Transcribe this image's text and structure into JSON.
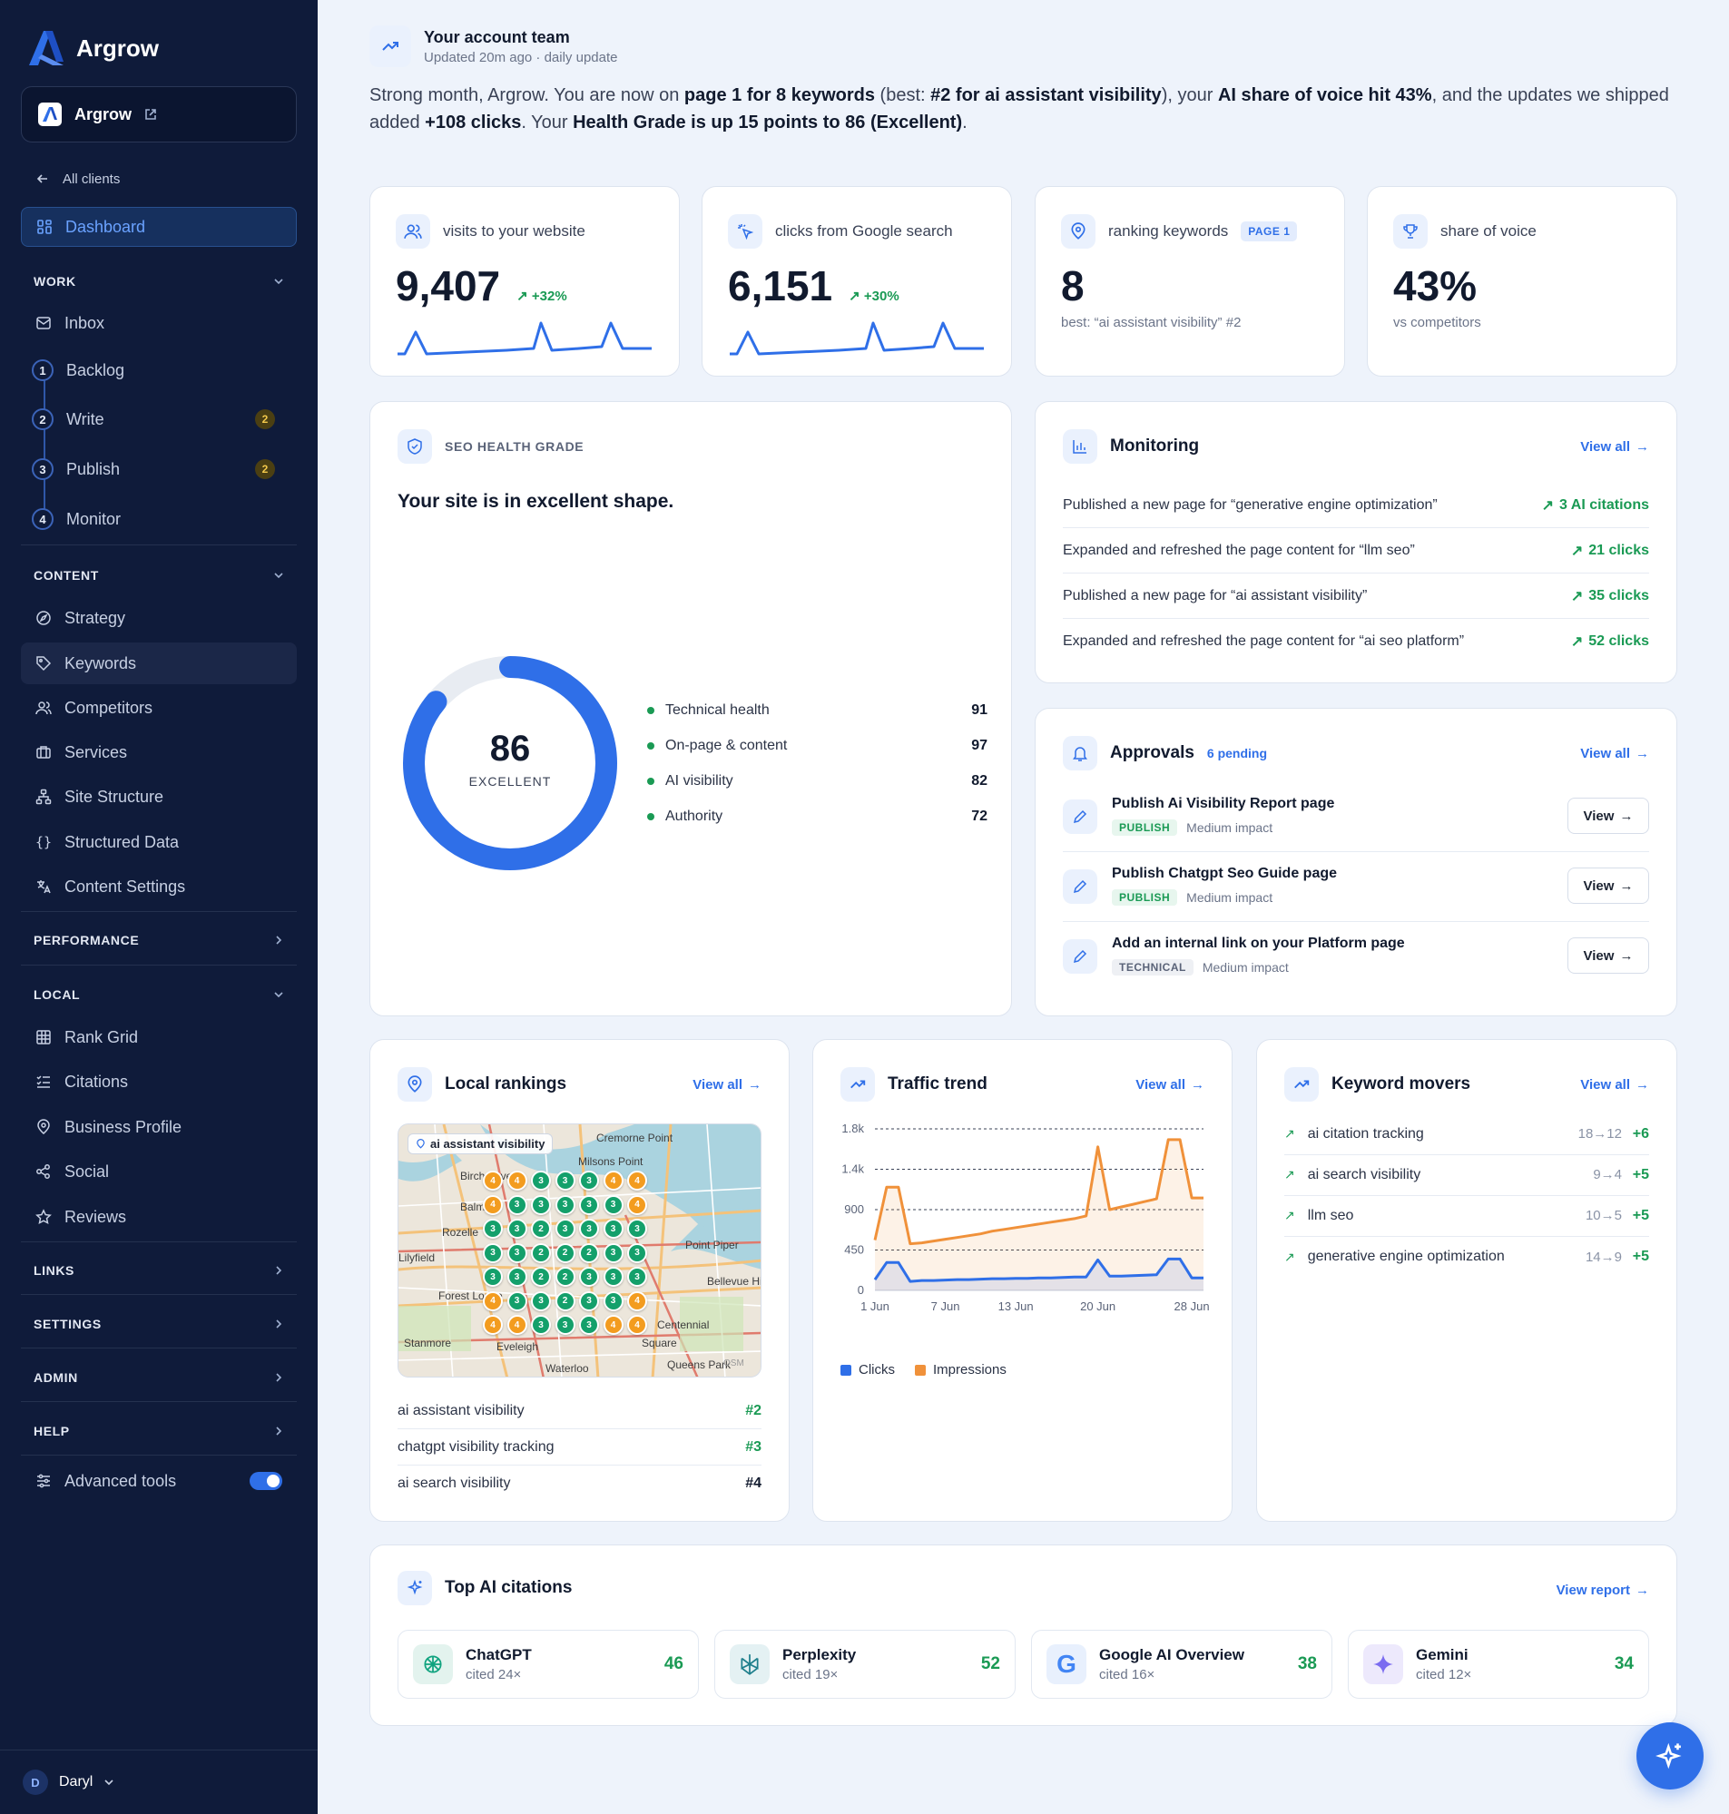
{
  "brand": {
    "name": "Argrow"
  },
  "sidebar": {
    "client_name": "Argrow",
    "back_label": "All clients",
    "dashboard_label": "Dashboard",
    "work": {
      "title": "WORK",
      "items": [
        {
          "label": "Inbox"
        },
        {
          "label": "Backlog",
          "step": "1"
        },
        {
          "label": "Write",
          "step": "2",
          "badge": "2"
        },
        {
          "label": "Publish",
          "step": "3",
          "badge": "2"
        },
        {
          "label": "Monitor",
          "step": "4"
        }
      ]
    },
    "content": {
      "title": "CONTENT",
      "items": [
        "Strategy",
        "Keywords",
        "Competitors",
        "Services",
        "Site Structure",
        "Structured Data",
        "Content Settings"
      ]
    },
    "performance_title": "PERFORMANCE",
    "local": {
      "title": "LOCAL",
      "items": [
        "Rank Grid",
        "Citations",
        "Business Profile",
        "Social",
        "Reviews"
      ]
    },
    "links_title": "LINKS",
    "settings_title": "SETTINGS",
    "admin_title": "ADMIN",
    "help_title": "HELP",
    "advanced_tools": "Advanced tools",
    "advanced_tools_on": true,
    "user": {
      "initial": "D",
      "name": "Daryl"
    }
  },
  "header": {
    "team_title": "Your account team",
    "updated": "Updated 20m ago · daily update",
    "summary_parts": [
      {
        "t": "Strong month, Argrow. You are now on ",
        "b": false
      },
      {
        "t": "page 1 for 8 keywords",
        "b": true
      },
      {
        "t": " (best: ",
        "b": false
      },
      {
        "t": "#2 for ai assistant visibility",
        "b": true
      },
      {
        "t": "), your ",
        "b": false
      },
      {
        "t": "AI share of voice hit 43%",
        "b": true
      },
      {
        "t": ", and the updates we shipped added ",
        "b": false
      },
      {
        "t": "+108 clicks",
        "b": true
      },
      {
        "t": ". Your ",
        "b": false
      },
      {
        "t": "Health Grade is up 15 points to 86 (Excellent)",
        "b": true
      },
      {
        "t": ".",
        "b": false
      }
    ]
  },
  "stats": {
    "visits": {
      "label": "visits to your website",
      "value": "9,407",
      "delta": "+32%"
    },
    "clicks": {
      "label": "clicks from Google search",
      "value": "6,151",
      "delta": "+30%"
    },
    "keywords": {
      "label": "ranking keywords",
      "badge": "PAGE 1",
      "value": "8",
      "sub": "best: “ai assistant visibility” #2"
    },
    "sov": {
      "label": "share of voice",
      "value": "43%",
      "sub": "vs competitors"
    }
  },
  "health": {
    "heading": "SEO HEALTH GRADE",
    "title": "Your site is in excellent shape.",
    "score": "86",
    "score_value": 86,
    "grade": "EXCELLENT",
    "items": [
      {
        "label": "Technical health",
        "value": "91"
      },
      {
        "label": "On-page & content",
        "value": "97"
      },
      {
        "label": "AI visibility",
        "value": "82"
      },
      {
        "label": "Authority",
        "value": "72"
      }
    ]
  },
  "monitoring": {
    "title": "Monitoring",
    "view_all": "View all",
    "rows": [
      {
        "text": "Published a new page for “generative engine optimization”",
        "result": "3 AI citations"
      },
      {
        "text": "Expanded and refreshed the page content for “llm seo”",
        "result": "21 clicks"
      },
      {
        "text": "Published a new page for “ai assistant visibility”",
        "result": "35 clicks"
      },
      {
        "text": "Expanded and refreshed the page content for “ai seo platform”",
        "result": "52 clicks"
      }
    ]
  },
  "approvals": {
    "title": "Approvals",
    "pending": "6 pending",
    "view_all": "View all",
    "view_label": "View",
    "items": [
      {
        "title": "Publish Ai Visibility Report page",
        "tag": "PUBLISH",
        "impact": "Medium impact"
      },
      {
        "title": "Publish Chatgpt Seo Guide page",
        "tag": "PUBLISH",
        "impact": "Medium impact"
      },
      {
        "title": "Add an internal link on your Platform page",
        "tag": "TECHNICAL",
        "impact": "Medium impact"
      }
    ]
  },
  "local_rankings": {
    "title": "Local rankings",
    "view_all": "View all",
    "map_chip": "ai assistant visibility",
    "map_labels": [
      "Cremorne Point",
      "Milsons Point",
      "Birchgrove",
      "Balmain",
      "Rozelle",
      "Lilyfield",
      "Forest Lodge",
      "Point Piper",
      "Bellevue Hill",
      "Stanmore",
      "Eveleigh",
      "Waterloo",
      "Queens Park",
      "Centennial",
      "Square",
      "OSM"
    ],
    "grid": [
      [
        "4",
        "4",
        "3",
        "3",
        "3",
        "4",
        "4"
      ],
      [
        "4",
        "3",
        "3",
        "3",
        "3",
        "3",
        "4"
      ],
      [
        "3",
        "3",
        "2",
        "3",
        "3",
        "3",
        "3"
      ],
      [
        "3",
        "3",
        "2",
        "2",
        "2",
        "3",
        "3"
      ],
      [
        "3",
        "3",
        "2",
        "2",
        "3",
        "3",
        "3"
      ],
      [
        "4",
        "3",
        "3",
        "2",
        "3",
        "3",
        "4"
      ],
      [
        "4",
        "4",
        "3",
        "3",
        "3",
        "4",
        "4"
      ]
    ],
    "rows": [
      {
        "keyword": "ai assistant visibility",
        "rank": "#2"
      },
      {
        "keyword": "chatgpt visibility tracking",
        "rank": "#3"
      },
      {
        "keyword": "ai search visibility",
        "rank": "#4"
      }
    ]
  },
  "traffic": {
    "title": "Traffic trend",
    "view_all": "View all",
    "legend": [
      "Clicks",
      "Impressions"
    ]
  },
  "chart_data": {
    "type": "area",
    "x": [
      "1 Jun",
      "2 Jun",
      "3 Jun",
      "4 Jun",
      "5 Jun",
      "6 Jun",
      "7 Jun",
      "8 Jun",
      "9 Jun",
      "10 Jun",
      "11 Jun",
      "12 Jun",
      "13 Jun",
      "14 Jun",
      "15 Jun",
      "16 Jun",
      "17 Jun",
      "18 Jun",
      "19 Jun",
      "20 Jun",
      "21 Jun",
      "22 Jun",
      "23 Jun",
      "24 Jun",
      "25 Jun",
      "26 Jun",
      "27 Jun",
      "28 Jun",
      "29 Jun"
    ],
    "x_tick_labels": [
      "1 Jun",
      "7 Jun",
      "13 Jun",
      "20 Jun",
      "28 Jun"
    ],
    "y_ticks": [
      "0",
      "450",
      "900",
      "1.4k",
      "1.8k"
    ],
    "ylim": [
      0,
      1800
    ],
    "series": [
      {
        "name": "Clicks",
        "color": "#2f6fe8",
        "values": [
          120,
          310,
          310,
          100,
          110,
          110,
          115,
          120,
          120,
          125,
          130,
          130,
          135,
          135,
          140,
          140,
          145,
          150,
          150,
          340,
          160,
          160,
          165,
          170,
          175,
          350,
          350,
          140,
          140
        ]
      },
      {
        "name": "Impressions",
        "color": "#f0913a",
        "values": [
          560,
          1150,
          1150,
          520,
          530,
          550,
          570,
          590,
          610,
          630,
          660,
          680,
          700,
          720,
          740,
          760,
          780,
          800,
          830,
          1600,
          900,
          930,
          960,
          990,
          1020,
          1680,
          1680,
          1030,
          1030
        ]
      }
    ]
  },
  "keyword_movers": {
    "title": "Keyword movers",
    "view_all": "View all",
    "rows": [
      {
        "keyword": "ai citation tracking",
        "move": "18→12",
        "delta": "+6"
      },
      {
        "keyword": "ai search visibility",
        "move": "9→4",
        "delta": "+5"
      },
      {
        "keyword": "llm seo",
        "move": "10→5",
        "delta": "+5"
      },
      {
        "keyword": "generative engine optimization",
        "move": "14→9",
        "delta": "+5"
      }
    ]
  },
  "citations": {
    "title": "Top AI citations",
    "view_report": "View report",
    "items": [
      {
        "name": "ChatGPT",
        "cited": "cited 24×",
        "value": "46",
        "icon": "chatgpt-icon"
      },
      {
        "name": "Perplexity",
        "cited": "cited 19×",
        "value": "52",
        "icon": "perplexity-icon"
      },
      {
        "name": "Google AI Overview",
        "cited": "cited 16×",
        "value": "38",
        "icon": "google-icon"
      },
      {
        "name": "Gemini",
        "cited": "cited 12×",
        "value": "34",
        "icon": "gemini-icon"
      }
    ]
  },
  "colors": {
    "accent": "#2f6fe8",
    "sidebar": "#0f1b3a",
    "positive": "#1a9a54",
    "rank_green": "#14a06b",
    "rank_orange": "#f39c1f"
  }
}
